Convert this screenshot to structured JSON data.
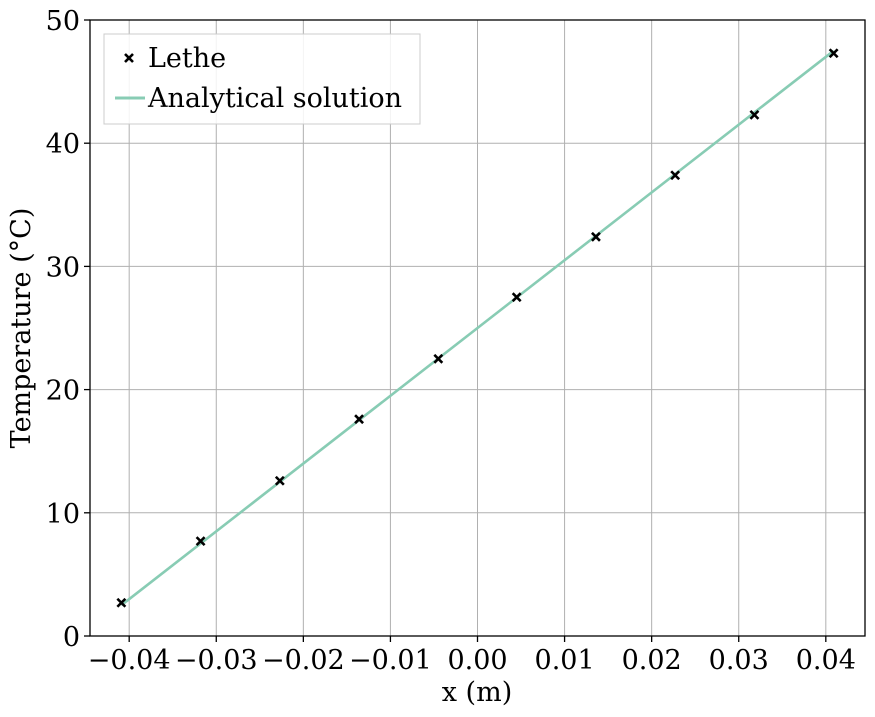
{
  "chart_data": {
    "type": "scatter",
    "xlabel": "x (m)",
    "ylabel": "Temperature (°C)",
    "xlim": [
      -0.0445,
      0.0445
    ],
    "ylim": [
      0,
      50
    ],
    "xticks": [
      -0.04,
      -0.03,
      -0.02,
      -0.01,
      0.0,
      0.01,
      0.02,
      0.03,
      0.04
    ],
    "xtick_labels": [
      "−0.04",
      "−0.03",
      "−0.02",
      "−0.01",
      "0.00",
      "0.01",
      "0.02",
      "0.03",
      "0.04"
    ],
    "yticks": [
      0,
      10,
      20,
      30,
      40,
      50
    ],
    "ytick_labels": [
      "0",
      "10",
      "20",
      "30",
      "40",
      "50"
    ],
    "grid": true,
    "legend_position": "top-left",
    "series": [
      {
        "name": "Lethe",
        "kind": "markers",
        "marker": "x",
        "color": "#000000",
        "x": [
          -0.0409,
          -0.0318,
          -0.0227,
          -0.0136,
          -0.0045,
          0.0045,
          0.0136,
          0.0227,
          0.0318,
          0.0409
        ],
        "y": [
          2.7,
          7.7,
          12.6,
          17.6,
          22.5,
          27.5,
          32.4,
          37.4,
          42.3,
          47.3
        ]
      },
      {
        "name": "Analytical solution",
        "kind": "line",
        "color": "#88ccb4",
        "x": [
          -0.0409,
          0.0409
        ],
        "y": [
          2.5,
          47.5
        ]
      }
    ]
  }
}
